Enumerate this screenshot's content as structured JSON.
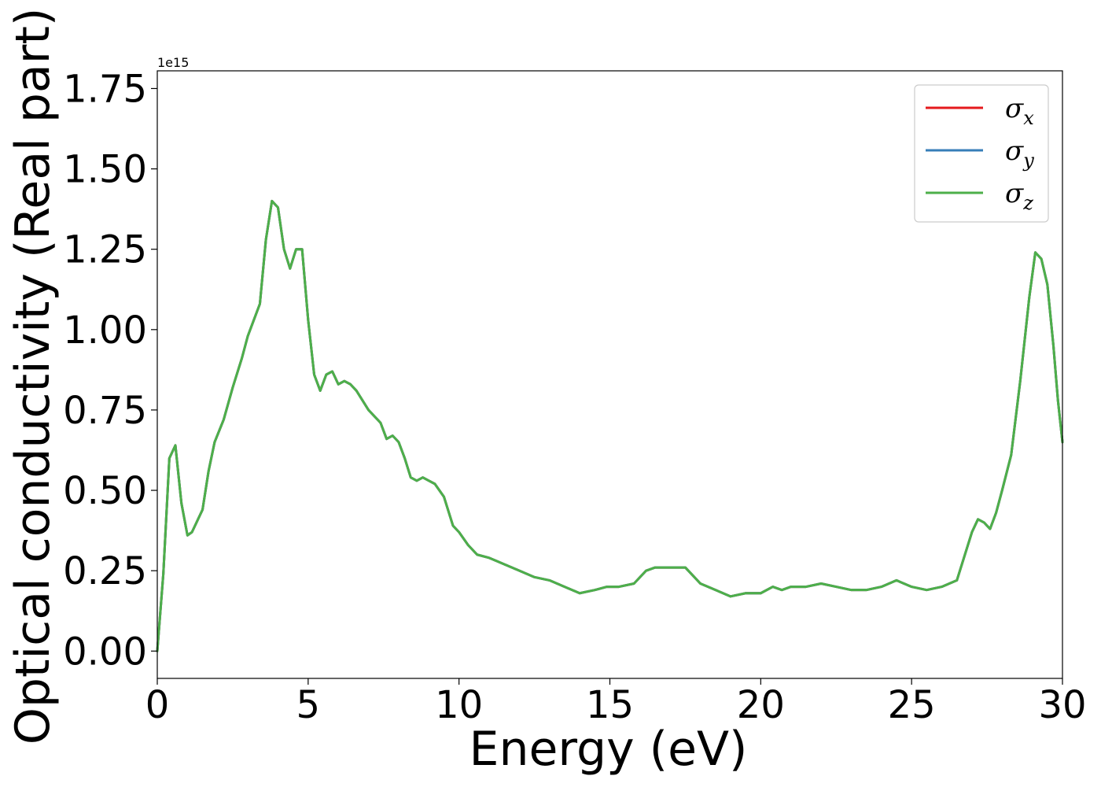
{
  "chart_data": {
    "type": "line",
    "title": "",
    "xlabel": "Energy (eV)",
    "ylabel": "Optical conductivity (Real part)",
    "y_offset_label": "1e15",
    "y_scale": 1000000000000000.0,
    "xlim": [
      0,
      30
    ],
    "ylim": [
      -0.085,
      1.805
    ],
    "x_ticks": [
      0,
      5,
      10,
      15,
      20,
      25,
      30
    ],
    "x_tick_labels": [
      "0",
      "5",
      "10",
      "15",
      "20",
      "25",
      "30"
    ],
    "y_ticks": [
      0.0,
      0.25,
      0.5,
      0.75,
      1.0,
      1.25,
      1.5,
      1.75
    ],
    "y_tick_labels": [
      "0.00",
      "0.25",
      "0.50",
      "0.75",
      "1.00",
      "1.25",
      "1.50",
      "1.75"
    ],
    "grid": false,
    "legend_position": "top-right",
    "series": [
      {
        "name": "σx",
        "symbol": "σ",
        "subscript": "x",
        "color": "#e41a1c",
        "key": "common"
      },
      {
        "name": "σy",
        "symbol": "σ",
        "subscript": "y",
        "color": "#377eb8",
        "key": "common"
      },
      {
        "name": "σz",
        "symbol": "σ",
        "subscript": "z",
        "color": "#4daf4a",
        "key": "common"
      }
    ],
    "common": {
      "x": [
        0,
        0.2,
        0.4,
        0.6,
        0.8,
        1.0,
        1.15,
        1.3,
        1.5,
        1.7,
        1.9,
        2.2,
        2.5,
        2.8,
        3.0,
        3.2,
        3.4,
        3.6,
        3.8,
        4.0,
        4.2,
        4.4,
        4.6,
        4.8,
        5.0,
        5.2,
        5.4,
        5.6,
        5.8,
        6.0,
        6.2,
        6.4,
        6.6,
        7.0,
        7.4,
        7.6,
        7.8,
        8.0,
        8.2,
        8.4,
        8.6,
        8.8,
        9.0,
        9.2,
        9.5,
        9.8,
        10.0,
        10.3,
        10.6,
        11.0,
        11.5,
        12.0,
        12.5,
        13.0,
        13.5,
        14.0,
        14.5,
        14.9,
        15.3,
        15.8,
        16.2,
        16.5,
        16.8,
        17.2,
        17.5,
        17.8,
        18.0,
        18.5,
        19.0,
        19.5,
        20.0,
        20.4,
        20.7,
        21.0,
        21.5,
        22.0,
        22.5,
        23.0,
        23.5,
        24.0,
        24.5,
        25.0,
        25.5,
        26.0,
        26.5,
        27.0,
        27.2,
        27.4,
        27.6,
        27.8,
        28.0,
        28.3,
        28.6,
        28.9,
        29.1,
        29.3,
        29.5,
        29.7,
        29.85,
        30.0
      ],
      "y": [
        0.0,
        0.24,
        0.6,
        0.64,
        0.46,
        0.36,
        0.37,
        0.4,
        0.44,
        0.56,
        0.65,
        0.72,
        0.82,
        0.91,
        0.98,
        1.03,
        1.08,
        1.28,
        1.4,
        1.38,
        1.25,
        1.19,
        1.25,
        1.25,
        1.03,
        0.86,
        0.81,
        0.86,
        0.87,
        0.83,
        0.84,
        0.83,
        0.81,
        0.75,
        0.71,
        0.66,
        0.67,
        0.65,
        0.6,
        0.54,
        0.53,
        0.54,
        0.53,
        0.52,
        0.48,
        0.39,
        0.37,
        0.33,
        0.3,
        0.29,
        0.27,
        0.25,
        0.23,
        0.22,
        0.2,
        0.18,
        0.19,
        0.2,
        0.2,
        0.21,
        0.25,
        0.26,
        0.26,
        0.26,
        0.26,
        0.23,
        0.21,
        0.19,
        0.17,
        0.18,
        0.18,
        0.2,
        0.19,
        0.2,
        0.2,
        0.21,
        0.2,
        0.19,
        0.19,
        0.2,
        0.22,
        0.2,
        0.19,
        0.2,
        0.22,
        0.37,
        0.41,
        0.4,
        0.38,
        0.43,
        0.5,
        0.61,
        0.84,
        1.1,
        1.24,
        1.22,
        1.14,
        0.95,
        0.78,
        0.65
      ]
    }
  }
}
